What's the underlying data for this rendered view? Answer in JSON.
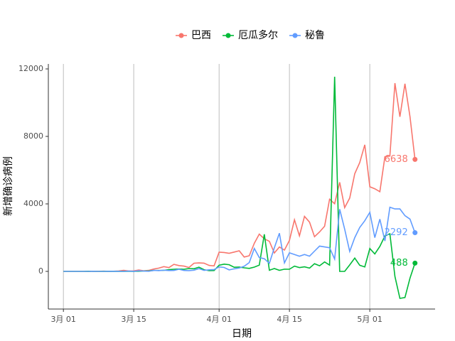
{
  "chart_data": {
    "type": "line",
    "xlabel": "日期",
    "ylabel": "新增确诊病例",
    "x": [
      "03-01",
      "03-02",
      "03-03",
      "03-04",
      "03-05",
      "03-06",
      "03-07",
      "03-08",
      "03-09",
      "03-10",
      "03-11",
      "03-12",
      "03-13",
      "03-14",
      "03-15",
      "03-16",
      "03-17",
      "03-18",
      "03-19",
      "03-20",
      "03-21",
      "03-22",
      "03-23",
      "03-24",
      "03-25",
      "03-26",
      "03-27",
      "03-28",
      "03-29",
      "03-30",
      "03-31",
      "04-01",
      "04-02",
      "04-03",
      "04-04",
      "04-05",
      "04-06",
      "04-07",
      "04-08",
      "04-09",
      "04-10",
      "04-11",
      "04-12",
      "04-13",
      "04-14",
      "04-15",
      "04-16",
      "04-17",
      "04-18",
      "04-19",
      "04-20",
      "04-21",
      "04-22",
      "04-23",
      "04-24",
      "04-25",
      "04-26",
      "04-27",
      "04-28",
      "04-29",
      "04-30",
      "05-01",
      "05-02",
      "05-03",
      "05-04",
      "05-05",
      "05-06",
      "05-07",
      "05-08",
      "05-09",
      "05-10"
    ],
    "series": [
      {
        "name": "巴西",
        "color": "#F8766D",
        "values": [
          1,
          0,
          0,
          1,
          1,
          6,
          5,
          6,
          12,
          5,
          9,
          27,
          60,
          23,
          29,
          79,
          34,
          57,
          137,
          193,
          283,
          224,
          418,
          345,
          310,
          232,
          482,
          502,
          487,
          352,
          323,
          1138,
          1119,
          1074,
          1146,
          1222,
          852,
          926,
          1661,
          2210,
          1930,
          1781,
          1089,
          1442,
          1261,
          1832,
          3058,
          2105,
          3257,
          2917,
          2055,
          2336,
          2678,
          4279,
          4007,
          5281,
          3776,
          4346,
          5789,
          6450,
          7502,
          5015,
          4898,
          4726,
          6794,
          6835,
          11156,
          9162,
          11121,
          9167,
          6638
        ]
      },
      {
        "name": "厄瓜多尔",
        "color": "#00BA38",
        "values": [
          0,
          0,
          0,
          0,
          0,
          7,
          1,
          0,
          5,
          3,
          2,
          2,
          0,
          0,
          2,
          9,
          21,
          31,
          53,
          56,
          64,
          99,
          127,
          140,
          123,
          170,
          155,
          248,
          100,
          40,
          52,
          367,
          429,
          395,
          246,
          255,
          211,
          177,
          254,
          371,
          2196,
          68,
          169,
          62,
          132,
          124,
          313,
          222,
          271,
          192,
          456,
          331,
          560,
          371,
          11536,
          0,
          0,
          384,
          786,
          361,
          264,
          1357,
          1032,
          1480,
          2100,
          2230,
          -300,
          -1600,
          -1550,
          -400,
          488
        ]
      },
      {
        "name": "秘鲁",
        "color": "#619CFF",
        "values": [
          0,
          0,
          0,
          0,
          0,
          1,
          5,
          0,
          1,
          2,
          2,
          6,
          0,
          16,
          5,
          33,
          15,
          9,
          59,
          45,
          73,
          51,
          56,
          124,
          55,
          44,
          71,
          166,
          59,
          92,
          108,
          263,
          232,
          90,
          150,
          200,
          304,
          520,
          1360,
          822,
          750,
          480,
          1400,
          2265,
          500,
          1100,
          1000,
          900,
          1000,
          900,
          1200,
          1500,
          1450,
          1400,
          730,
          3683,
          2500,
          1182,
          2000,
          2600,
          3000,
          3500,
          2000,
          3100,
          1800,
          3800,
          3700,
          3700,
          3300,
          3100,
          2292
        ]
      }
    ],
    "xlim": [
      "02-26",
      "05-14"
    ],
    "xticks": [
      {
        "value": "03-01",
        "label": "3月 01"
      },
      {
        "value": "03-15",
        "label": "3月 15"
      },
      {
        "value": "04-01",
        "label": "4月 01"
      },
      {
        "value": "04-15",
        "label": "4月 15"
      },
      {
        "value": "05-01",
        "label": "5月 01"
      }
    ],
    "ylim": [
      -2232,
      12295
    ],
    "yticks": [
      0,
      4000,
      8000,
      12000
    ],
    "grid": "x",
    "legend": "top"
  }
}
